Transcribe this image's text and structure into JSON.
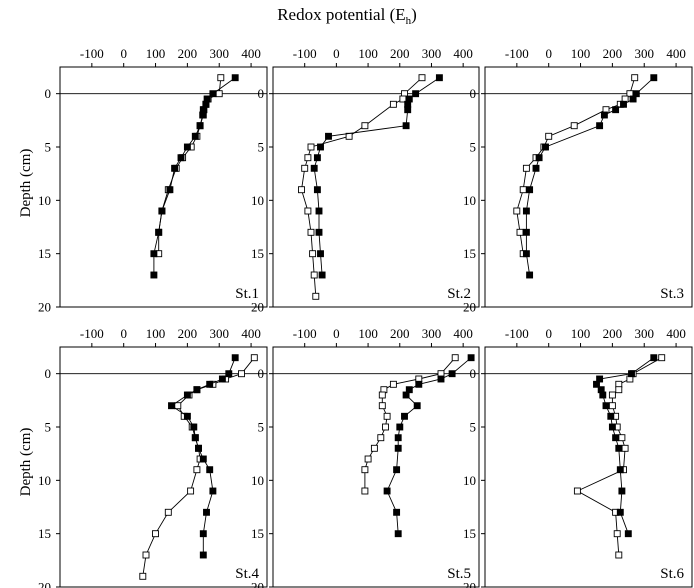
{
  "figure": {
    "title": "Redox potential (E",
    "title_sub": "h",
    "title_end": ")",
    "ylabel": "Depth (cm)"
  },
  "chart_data": [
    {
      "type": "line",
      "panel": "St.1",
      "xlim": [
        -200,
        450
      ],
      "ylim": [
        20,
        -2.5
      ],
      "xticks": [
        -100,
        0,
        100,
        200,
        300,
        400
      ],
      "yticks": [
        0,
        5,
        10,
        15,
        20
      ],
      "series": [
        {
          "marker": "open",
          "x": [
            305,
            300,
            265,
            258,
            252,
            250,
            240,
            230,
            212,
            185,
            165,
            140,
            120,
            110,
            110
          ],
          "y": [
            -1.5,
            0,
            0.5,
            1,
            1.5,
            2,
            3,
            4,
            5,
            6,
            7,
            9,
            11,
            13,
            15
          ]
        },
        {
          "marker": "filled",
          "x": [
            350,
            280,
            262,
            258,
            250,
            248,
            240,
            225,
            200,
            180,
            160,
            145,
            120,
            110,
            95,
            95
          ],
          "y": [
            -1.5,
            0,
            0.5,
            1,
            1.5,
            2,
            3,
            4,
            5,
            6,
            7,
            9,
            11,
            13,
            15,
            17
          ]
        }
      ]
    },
    {
      "type": "line",
      "panel": "St.2",
      "xlim": [
        -200,
        450
      ],
      "ylim": [
        20,
        -2.5
      ],
      "xticks": [
        -100,
        0,
        100,
        200,
        300,
        400
      ],
      "yticks": [
        0,
        5,
        10,
        15,
        20
      ],
      "series": [
        {
          "marker": "open",
          "x": [
            270,
            215,
            210,
            180,
            90,
            40,
            -80,
            -90,
            -100,
            -110,
            -90,
            -80,
            -75,
            -70,
            -65
          ],
          "y": [
            -1.5,
            0,
            0.5,
            1,
            3,
            4,
            5,
            6,
            7,
            9,
            11,
            13,
            15,
            17,
            19
          ]
        },
        {
          "marker": "filled",
          "x": [
            325,
            250,
            230,
            225,
            225,
            220,
            -25,
            -50,
            -60,
            -70,
            -60,
            -55,
            -55,
            -50,
            -45
          ],
          "y": [
            -1.5,
            0,
            0.5,
            1,
            1.5,
            3,
            4,
            5,
            6,
            7,
            9,
            11,
            13,
            15,
            17
          ]
        }
      ]
    },
    {
      "type": "line",
      "panel": "St.3",
      "xlim": [
        -200,
        450
      ],
      "ylim": [
        20,
        -2.5
      ],
      "xticks": [
        -100,
        0,
        100,
        200,
        300,
        400
      ],
      "yticks": [
        0,
        5,
        10,
        15,
        20
      ],
      "series": [
        {
          "marker": "open",
          "x": [
            270,
            255,
            240,
            225,
            180,
            80,
            0,
            -15,
            -40,
            -70,
            -80,
            -100,
            -90,
            -80
          ],
          "y": [
            -1.5,
            0,
            0.5,
            1,
            1.5,
            3,
            4,
            5,
            6,
            7,
            9,
            11,
            13,
            15
          ]
        },
        {
          "marker": "filled",
          "x": [
            330,
            275,
            265,
            235,
            210,
            175,
            160,
            -10,
            -30,
            -40,
            -60,
            -70,
            -70,
            -70,
            -60
          ],
          "y": [
            -1.5,
            0,
            0.5,
            1,
            1.5,
            2,
            3,
            5,
            6,
            7,
            9,
            11,
            13,
            15,
            17
          ]
        }
      ]
    },
    {
      "type": "line",
      "panel": "St.4",
      "xlim": [
        -200,
        450
      ],
      "ylim": [
        20,
        -2.5
      ],
      "xticks": [
        -100,
        0,
        100,
        200,
        300,
        400
      ],
      "yticks": [
        0,
        5,
        10,
        15,
        20
      ],
      "series": [
        {
          "marker": "open",
          "x": [
            410,
            370,
            320,
            280,
            230,
            205,
            170,
            190,
            215,
            225,
            235,
            240,
            230,
            210,
            140,
            100,
            70,
            60
          ],
          "y": [
            -1.5,
            0,
            0.5,
            1,
            1.5,
            2,
            3,
            4,
            5,
            6,
            7,
            8,
            9,
            11,
            13,
            15,
            17,
            19
          ]
        },
        {
          "marker": "filled",
          "x": [
            350,
            330,
            310,
            270,
            230,
            200,
            150,
            200,
            220,
            225,
            235,
            250,
            270,
            280,
            260,
            250,
            250
          ],
          "y": [
            -1.5,
            0,
            0.5,
            1,
            1.5,
            2,
            3,
            4,
            5,
            6,
            7,
            8,
            9,
            11,
            13,
            15,
            17
          ]
        }
      ]
    },
    {
      "type": "line",
      "panel": "St.5",
      "xlim": [
        -200,
        450
      ],
      "ylim": [
        20,
        -2.5
      ],
      "xticks": [
        -100,
        0,
        100,
        200,
        300,
        400
      ],
      "yticks": [
        0,
        5,
        10,
        15,
        20
      ],
      "series": [
        {
          "marker": "open",
          "x": [
            375,
            330,
            260,
            180,
            150,
            145,
            145,
            160,
            155,
            140,
            120,
            100,
            90,
            90
          ],
          "y": [
            -1.5,
            0,
            0.5,
            1,
            1.5,
            2,
            3,
            4,
            5,
            6,
            7,
            8,
            9,
            11
          ]
        },
        {
          "marker": "filled",
          "x": [
            425,
            365,
            330,
            260,
            230,
            220,
            255,
            215,
            200,
            195,
            195,
            190,
            160,
            190,
            195
          ],
          "y": [
            -1.5,
            0,
            0.5,
            1,
            1.5,
            2,
            3,
            4,
            5,
            6,
            7,
            9,
            11,
            13,
            15
          ]
        }
      ]
    },
    {
      "type": "line",
      "panel": "St.6",
      "xlim": [
        -200,
        450
      ],
      "ylim": [
        20,
        -2.5
      ],
      "xticks": [
        -100,
        0,
        100,
        200,
        300,
        400
      ],
      "yticks": [
        0,
        5,
        10,
        15,
        20
      ],
      "series": [
        {
          "marker": "open",
          "x": [
            355,
            265,
            255,
            220,
            220,
            200,
            200,
            210,
            215,
            230,
            240,
            235,
            90,
            210,
            215,
            220
          ],
          "y": [
            -1.5,
            0,
            0.5,
            1,
            1.5,
            2,
            3,
            4,
            5,
            6,
            7,
            9,
            11,
            13,
            15,
            17
          ]
        },
        {
          "marker": "filled",
          "x": [
            330,
            260,
            160,
            150,
            165,
            170,
            180,
            195,
            200,
            210,
            220,
            225,
            230,
            225,
            250
          ],
          "y": [
            -1.5,
            0,
            0.5,
            1,
            1.5,
            2,
            3,
            4,
            5,
            6,
            7,
            9,
            11,
            13,
            15
          ]
        }
      ]
    }
  ]
}
